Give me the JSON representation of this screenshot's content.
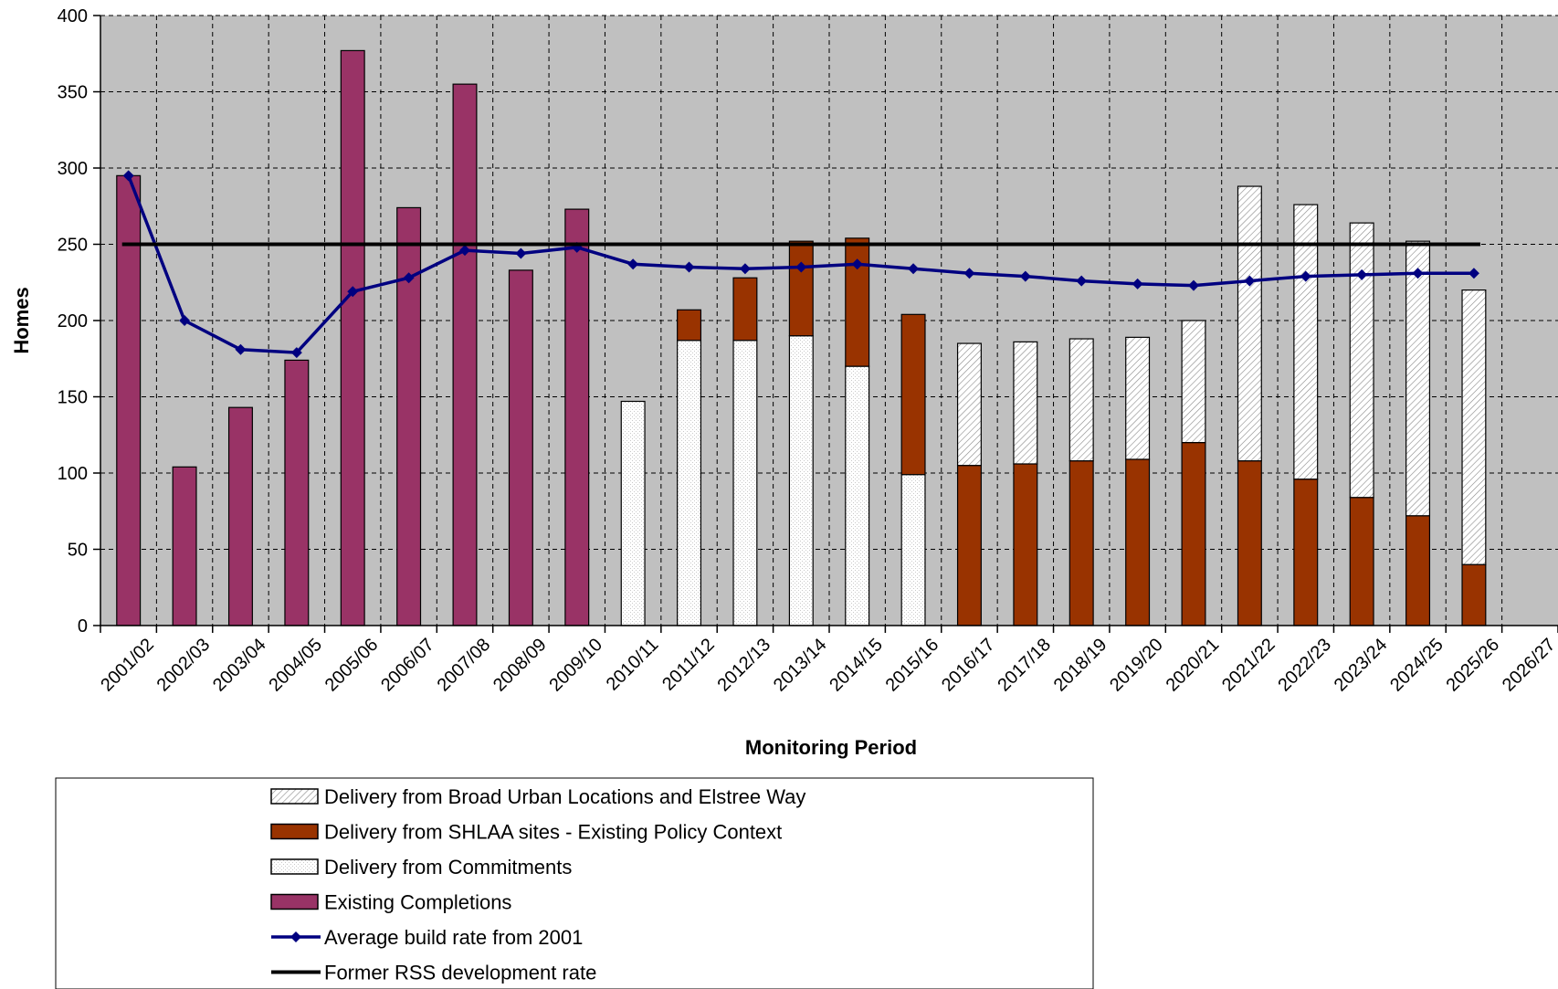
{
  "chart_data": {
    "type": "bar",
    "xlabel": "Monitoring Period",
    "ylabel": "Homes",
    "ylim": [
      0,
      400
    ],
    "yticks": [
      0,
      50,
      100,
      150,
      200,
      250,
      300,
      350,
      400
    ],
    "categories": [
      "2001/02",
      "2002/03",
      "2003/04",
      "2004/05",
      "2005/06",
      "2006/07",
      "2007/08",
      "2008/09",
      "2009/10",
      "2010/11",
      "2011/12",
      "2012/13",
      "2013/14",
      "2014/15",
      "2015/16",
      "2016/17",
      "2017/18",
      "2018/19",
      "2019/20",
      "2020/21",
      "2021/22",
      "2022/23",
      "2023/24",
      "2024/25",
      "2025/26",
      "2026/27"
    ],
    "grid": true,
    "legend_position": "bottom",
    "series": [
      {
        "name": "Existing Completions",
        "kind": "stacked-bar",
        "color": "#993366",
        "values": [
          295,
          104,
          143,
          174,
          377,
          274,
          355,
          233,
          273,
          0,
          0,
          0,
          0,
          0,
          0,
          0,
          0,
          0,
          0,
          0,
          0,
          0,
          0,
          0,
          0,
          null
        ]
      },
      {
        "name": "Delivery from Commitments",
        "kind": "stacked-bar",
        "color": "#ffffff",
        "pattern": "dots",
        "values": [
          0,
          0,
          0,
          0,
          0,
          0,
          0,
          0,
          0,
          147,
          187,
          187,
          190,
          170,
          99,
          0,
          0,
          0,
          0,
          0,
          0,
          0,
          0,
          0,
          0,
          null
        ]
      },
      {
        "name": "Delivery from SHLAA sites - Existing Policy Context",
        "kind": "stacked-bar",
        "color": "#993300",
        "values": [
          0,
          0,
          0,
          0,
          0,
          0,
          0,
          0,
          0,
          0,
          20,
          41,
          62,
          84,
          105,
          105,
          106,
          108,
          109,
          120,
          108,
          96,
          84,
          72,
          40,
          null
        ]
      },
      {
        "name": "Delivery from Broad Urban Locations and Elstree Way",
        "kind": "stacked-bar",
        "color": "#ffffff",
        "pattern": "hatch",
        "values": [
          0,
          0,
          0,
          0,
          0,
          0,
          0,
          0,
          0,
          0,
          0,
          0,
          0,
          0,
          0,
          80,
          80,
          80,
          80,
          80,
          180,
          180,
          180,
          180,
          180,
          null
        ]
      },
      {
        "name": "Average build rate from 2001",
        "kind": "line",
        "color": "#000080",
        "values": [
          295,
          200,
          181,
          179,
          219,
          228,
          246,
          244,
          248,
          237,
          235,
          234,
          235,
          237,
          234,
          231,
          229,
          226,
          224,
          223,
          226,
          229,
          230,
          231,
          231,
          null
        ]
      },
      {
        "name": "Former RSS development rate",
        "kind": "line",
        "color": "#000000",
        "values": [
          250,
          250,
          250,
          250,
          250,
          250,
          250,
          250,
          250,
          250,
          250,
          250,
          250,
          250,
          250,
          250,
          250,
          250,
          250,
          250,
          250,
          250,
          250,
          250,
          250,
          null
        ]
      }
    ],
    "legend_order": [
      "Delivery from Broad Urban Locations and Elstree Way",
      "Delivery from SHLAA sites - Existing Policy Context",
      "Delivery from Commitments",
      "Existing Completions",
      "Average build rate from 2001",
      "Former RSS development rate"
    ]
  }
}
